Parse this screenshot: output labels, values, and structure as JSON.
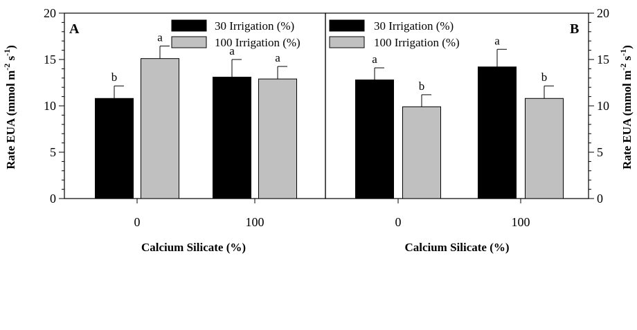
{
  "chart_data": [
    {
      "type": "bar",
      "panel_label": "A",
      "xlabel": "Calcium Silicate (%)",
      "ylabel_main": "Rate EUA (mmol m",
      "ylabel_sup1": "-2",
      "ylabel_mid": " s",
      "ylabel_sup2": "-1",
      "ylabel_end": ")",
      "ylim": [
        0,
        20
      ],
      "yticks": [
        0,
        5,
        10,
        15,
        20
      ],
      "y_axis_side": "left",
      "legend_position": "top-right",
      "categories": [
        "0",
        "100"
      ],
      "series": [
        {
          "name": "30 Irrigation (%)",
          "color": "#000000",
          "values": [
            10.8,
            13.1
          ],
          "errors": [
            1.35,
            1.9
          ],
          "letters": [
            "b",
            "a"
          ]
        },
        {
          "name": "100 Irrigation (%)",
          "color": "#c0c0c0",
          "values": [
            15.1,
            12.9
          ],
          "errors": [
            1.35,
            1.35
          ],
          "letters": [
            "a",
            "a"
          ]
        }
      ]
    },
    {
      "type": "bar",
      "panel_label": "B",
      "xlabel": "Calcium Silicate (%)",
      "ylabel_main": "Rate EUA (mmol m",
      "ylabel_sup1": "-2",
      "ylabel_mid": " s",
      "ylabel_sup2": "-1",
      "ylabel_end": ")",
      "ylim": [
        0,
        20
      ],
      "yticks": [
        0,
        5,
        10,
        15,
        20
      ],
      "y_axis_side": "right",
      "legend_position": "top-left",
      "categories": [
        "0",
        "100"
      ],
      "series": [
        {
          "name": "30 Irrigation (%)",
          "color": "#000000",
          "values": [
            12.8,
            14.2
          ],
          "errors": [
            1.3,
            1.9
          ],
          "letters": [
            "a",
            "a"
          ]
        },
        {
          "name": "100 Irrigation (%)",
          "color": "#c0c0c0",
          "values": [
            9.9,
            10.8
          ],
          "errors": [
            1.3,
            1.35
          ],
          "letters": [
            "b",
            "b"
          ]
        }
      ]
    }
  ]
}
